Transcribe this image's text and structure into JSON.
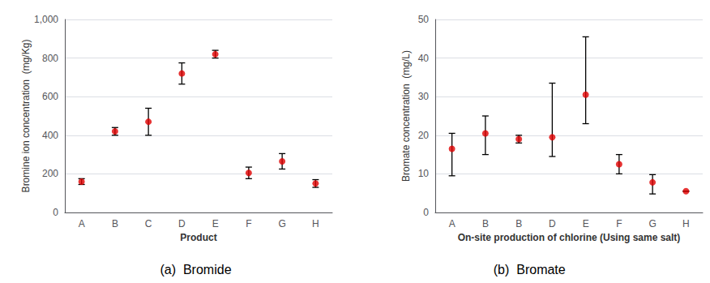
{
  "chart_data": [
    {
      "type": "scatter",
      "title": "(a)  Bromide",
      "xlabel": "Product",
      "ylabel": "Bromine ion concentration  (mg/Kg)",
      "categories": [
        "A",
        "B",
        "C",
        "D",
        "E",
        "F",
        "G",
        "H"
      ],
      "values": [
        160,
        420,
        470,
        720,
        820,
        205,
        265,
        150
      ],
      "yerr_low": [
        15,
        20,
        70,
        55,
        20,
        30,
        40,
        20
      ],
      "yerr_high": [
        15,
        20,
        70,
        55,
        20,
        30,
        40,
        20
      ],
      "ylim": [
        0,
        1000
      ],
      "yticks": [
        0,
        200,
        400,
        600,
        800,
        {
          "value": 1000,
          "label": "1,000"
        }
      ],
      "grid": true,
      "color": "#e00000"
    },
    {
      "type": "scatter",
      "title": "(b)  Bromate",
      "xlabel": "On-site production of chlorine (Using same salt)",
      "ylabel": "Bromate concentration  (mg/L)",
      "categories": [
        "A",
        "B",
        "B",
        "D",
        "E",
        "F",
        "G",
        "H"
      ],
      "values": [
        16.5,
        20.5,
        19.0,
        19.5,
        30.5,
        12.5,
        7.8,
        5.5
      ],
      "yerr_low": [
        7.0,
        5.5,
        1.0,
        5.0,
        7.5,
        2.5,
        3.0,
        0
      ],
      "yerr_high": [
        4.0,
        4.5,
        1.0,
        14.0,
        15.0,
        2.5,
        2.0,
        0
      ],
      "ylim": [
        0,
        50
      ],
      "yticks": [
        0,
        10,
        20,
        30,
        40,
        50
      ],
      "grid": true,
      "color": "#e00000"
    }
  ]
}
